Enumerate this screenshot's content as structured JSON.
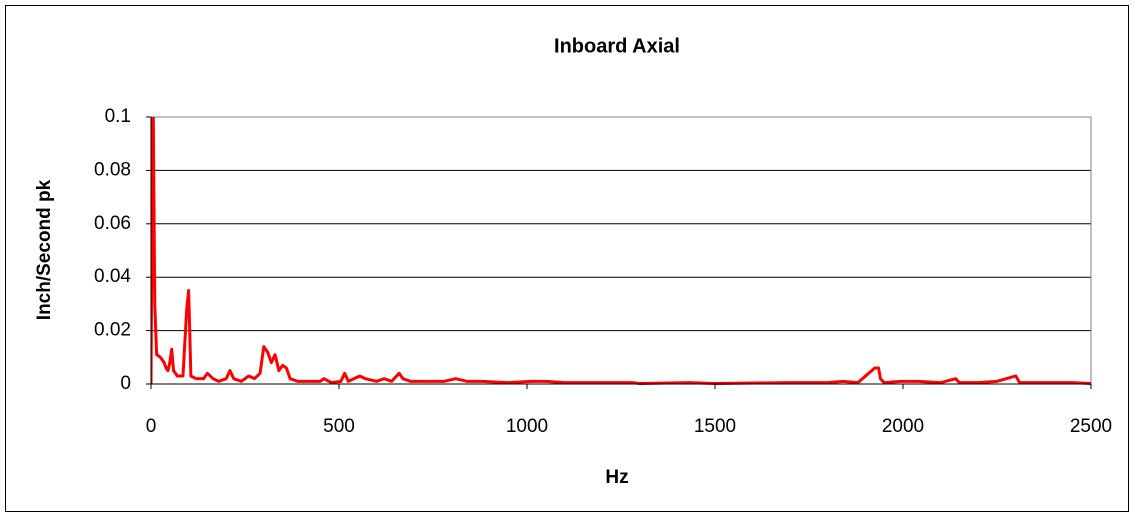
{
  "chart_data": {
    "type": "line",
    "title": "Inboard Axial",
    "x_label": "Hz",
    "y_label": "Inch/Second pk",
    "xlim": [
      0,
      2500
    ],
    "ylim": [
      0,
      0.1
    ],
    "xticks": [
      0,
      500,
      1000,
      1500,
      2000,
      2500
    ],
    "yticks": [
      0,
      0.02,
      0.04,
      0.06,
      0.08,
      0.1
    ],
    "grid": true,
    "series": [
      {
        "name": "Inboard Axial",
        "color": "#ff0000",
        "x": [
          0,
          5,
          10,
          15,
          25,
          35,
          40,
          45,
          50,
          55,
          60,
          70,
          85,
          95,
          100,
          103,
          106,
          120,
          140,
          150,
          165,
          180,
          200,
          210,
          220,
          240,
          260,
          275,
          290,
          300,
          310,
          320,
          330,
          340,
          350,
          360,
          370,
          390,
          420,
          450,
          460,
          480,
          505,
          515,
          525,
          540,
          555,
          570,
          600,
          620,
          640,
          660,
          670,
          690,
          720,
          780,
          810,
          840,
          880,
          950,
          1010,
          1050,
          1100,
          1170,
          1280,
          1300,
          1430,
          1500,
          1690,
          1740,
          1800,
          1840,
          1880,
          1925,
          1935,
          1940,
          1950,
          1995,
          2040,
          2100,
          2140,
          2150,
          2200,
          2250,
          2300,
          2310,
          2350,
          2400,
          2450,
          2500
        ],
        "values": [
          0,
          0.12,
          0.03,
          0.011,
          0.01,
          0.008,
          0.006,
          0.005,
          0.008,
          0.013,
          0.005,
          0.003,
          0.003,
          0.028,
          0.035,
          0.02,
          0.003,
          0.002,
          0.002,
          0.004,
          0.002,
          0.001,
          0.002,
          0.005,
          0.002,
          0.001,
          0.003,
          0.002,
          0.004,
          0.014,
          0.012,
          0.008,
          0.011,
          0.005,
          0.007,
          0.006,
          0.002,
          0.001,
          0.001,
          0.001,
          0.002,
          0.0005,
          0.001,
          0.004,
          0.001,
          0.002,
          0.003,
          0.002,
          0.001,
          0.002,
          0.001,
          0.004,
          0.002,
          0.001,
          0.001,
          0.001,
          0.002,
          0.001,
          0.001,
          0.0005,
          0.001,
          0.001,
          0.0005,
          0.0005,
          0.0005,
          0.0002,
          0.0005,
          0.0002,
          0.0005,
          0.0005,
          0.0005,
          0.001,
          0.0005,
          0.006,
          0.006,
          0.002,
          0.0005,
          0.001,
          0.001,
          0.0005,
          0.002,
          0.0005,
          0.0005,
          0.001,
          0.003,
          0.0005,
          0.0005,
          0.0005,
          0.0005,
          0.0002
        ]
      }
    ]
  }
}
